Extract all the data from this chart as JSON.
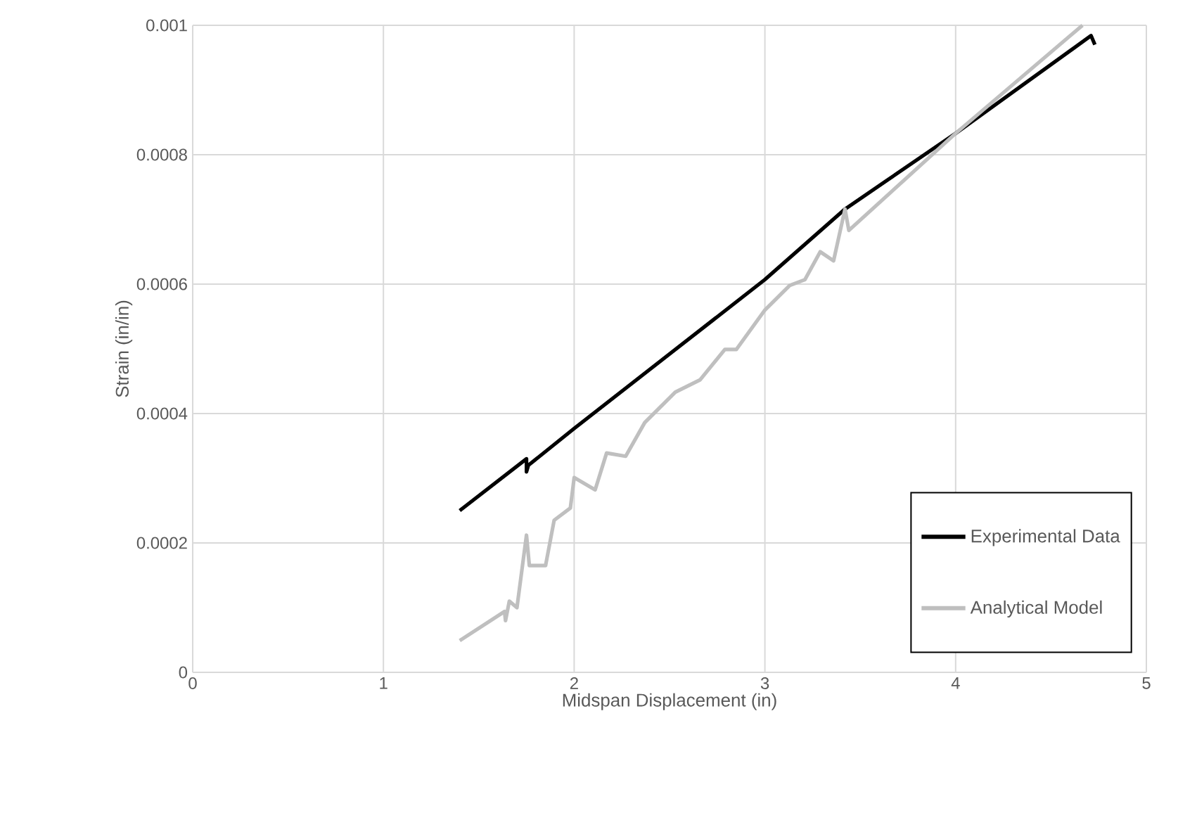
{
  "chart_data": {
    "type": "line",
    "xlabel": "Midspan Displacement (in)",
    "ylabel": "Strain (in/in)",
    "xlim": [
      0,
      5
    ],
    "ylim": [
      0,
      0.001
    ],
    "xticks": [
      0,
      1,
      2,
      3,
      4,
      5
    ],
    "yticks": [
      0,
      0.0002,
      0.0004,
      0.0006,
      0.0008,
      0.001
    ],
    "grid": true,
    "legend": "bottom right",
    "marker": "none",
    "line_style": "solid",
    "series": [
      {
        "name": "Experimental Data",
        "color": "#000000",
        "x": [
          1.4,
          1.75,
          1.75,
          1.76,
          2.0,
          3.0,
          3.42,
          4.0,
          4.71,
          4.73
        ],
        "values": [
          0.00025,
          0.00033,
          0.00031,
          0.00032,
          0.000377,
          0.000607,
          0.000716,
          0.000833,
          0.000984,
          0.00097
        ]
      },
      {
        "name": "Analytical Model",
        "color": "#bfbfbf",
        "x": [
          1.4,
          1.635,
          1.64,
          1.66,
          1.7,
          1.75,
          1.765,
          1.85,
          1.895,
          1.98,
          2.0,
          2.11,
          2.17,
          2.27,
          2.37,
          2.53,
          2.66,
          2.79,
          2.85,
          3.0,
          3.13,
          3.21,
          3.29,
          3.36,
          3.42,
          3.44,
          4.0,
          4.665
        ],
        "values": [
          4.9e-05,
          9.4e-05,
          8e-05,
          0.00011,
          0.0001,
          0.000212,
          0.000165,
          0.000165,
          0.000235,
          0.000254,
          0.000301,
          0.000282,
          0.000339,
          0.000334,
          0.000386,
          0.000433,
          0.000452,
          0.000499,
          0.000499,
          0.00056,
          0.000598,
          0.000607,
          0.00065,
          0.000636,
          0.000716,
          0.000683,
          0.000833,
          0.001
        ]
      }
    ]
  }
}
